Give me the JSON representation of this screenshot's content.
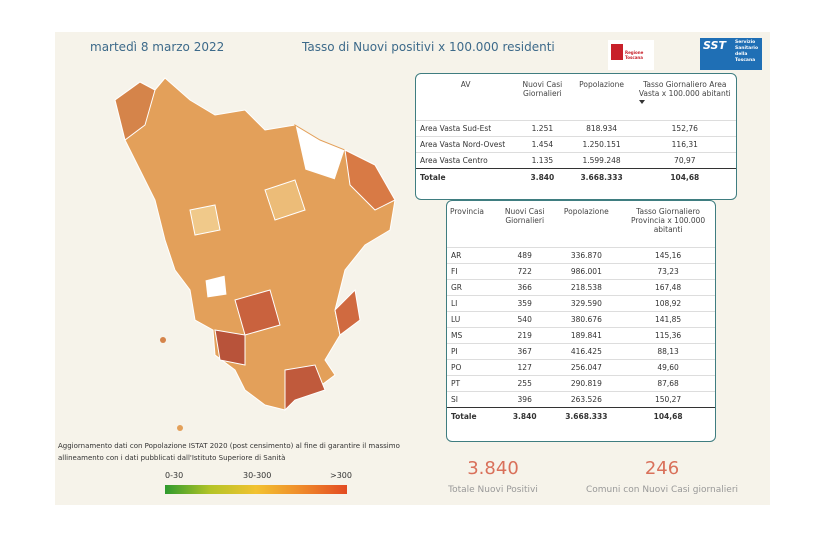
{
  "header": {
    "date": "martedì 8 marzo 2022",
    "title": "Tasso di Nuovi positivi x 100.000 residenti"
  },
  "logos": {
    "regione": "Regione Toscana",
    "sst": "SST",
    "sst_text": "Servizio Sanitario della Toscana"
  },
  "av_table": {
    "columns": [
      "AV",
      "Nuovi Casi Giornalieri",
      "Popolazione",
      "Tasso Giornaliero Area Vasta x 100.000 abitanti"
    ],
    "rows": [
      [
        "Area Vasta Sud-Est",
        "1.251",
        "818.934",
        "152,76"
      ],
      [
        "Area Vasta Nord-Ovest",
        "1.454",
        "1.250.151",
        "116,31"
      ],
      [
        "Area Vasta Centro",
        "1.135",
        "1.599.248",
        "70,97"
      ]
    ],
    "total": [
      "Totale",
      "3.840",
      "3.668.333",
      "104,68"
    ]
  },
  "province_table": {
    "columns": [
      "Provincia",
      "Nuovi Casi Giornalieri",
      "Popolazione",
      "Tasso Giornaliero Provincia x 100.000 abitanti"
    ],
    "rows": [
      [
        "AR",
        "489",
        "336.870",
        "145,16"
      ],
      [
        "FI",
        "722",
        "986.001",
        "73,23"
      ],
      [
        "GR",
        "366",
        "218.538",
        "167,48"
      ],
      [
        "LI",
        "359",
        "329.590",
        "108,92"
      ],
      [
        "LU",
        "540",
        "380.676",
        "141,85"
      ],
      [
        "MS",
        "219",
        "189.841",
        "115,36"
      ],
      [
        "PI",
        "367",
        "416.425",
        "88,13"
      ],
      [
        "PO",
        "127",
        "256.047",
        "49,60"
      ],
      [
        "PT",
        "255",
        "290.819",
        "87,68"
      ],
      [
        "SI",
        "396",
        "263.526",
        "150,27"
      ]
    ],
    "total": [
      "Totale",
      "3.840",
      "3.668.333",
      "104,68"
    ]
  },
  "note": "Aggiornamento dati con Popolazione ISTAT 2020 (post censimento) al fine di garantire il massimo allineamento con i dati pubblicati dall'Istituto Superiore di Sanità",
  "legend": {
    "labels": [
      "0-30",
      "30-300",
      ">300"
    ]
  },
  "kpis": [
    {
      "value": "3.840",
      "label": "Totale Nuovi Positivi"
    },
    {
      "value": "246",
      "label": "Comuni con Nuovi Casi giornalieri"
    }
  ]
}
